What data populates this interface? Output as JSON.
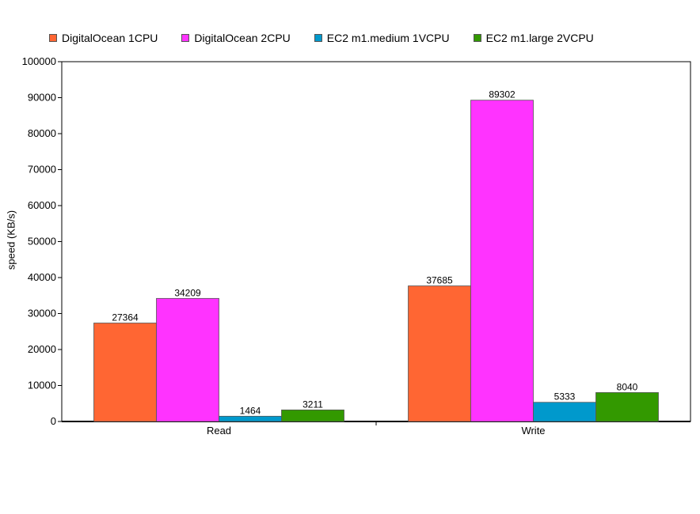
{
  "chart_data": {
    "type": "bar",
    "categories": [
      "Read",
      "Write"
    ],
    "series": [
      {
        "name": "DigitalOcean 1CPU",
        "color": "#ff6633",
        "values": [
          27364,
          37685
        ]
      },
      {
        "name": "DigitalOcean 2CPU",
        "color": "#ff33ff",
        "values": [
          34209,
          89302
        ]
      },
      {
        "name": "EC2 m1.medium 1VCPU",
        "color": "#0099cc",
        "values": [
          1464,
          5333
        ]
      },
      {
        "name": "EC2 m1.large 2VCPU",
        "color": "#339900",
        "values": [
          3211,
          8040
        ]
      }
    ],
    "title": "",
    "xlabel": "",
    "ylabel": "speed (KB/s)",
    "ylim": [
      0,
      100000
    ],
    "yticks": [
      0,
      10000,
      20000,
      30000,
      40000,
      50000,
      60000,
      70000,
      80000,
      90000,
      100000
    ],
    "legend_position": "top",
    "grid": false,
    "data_labels": true
  }
}
